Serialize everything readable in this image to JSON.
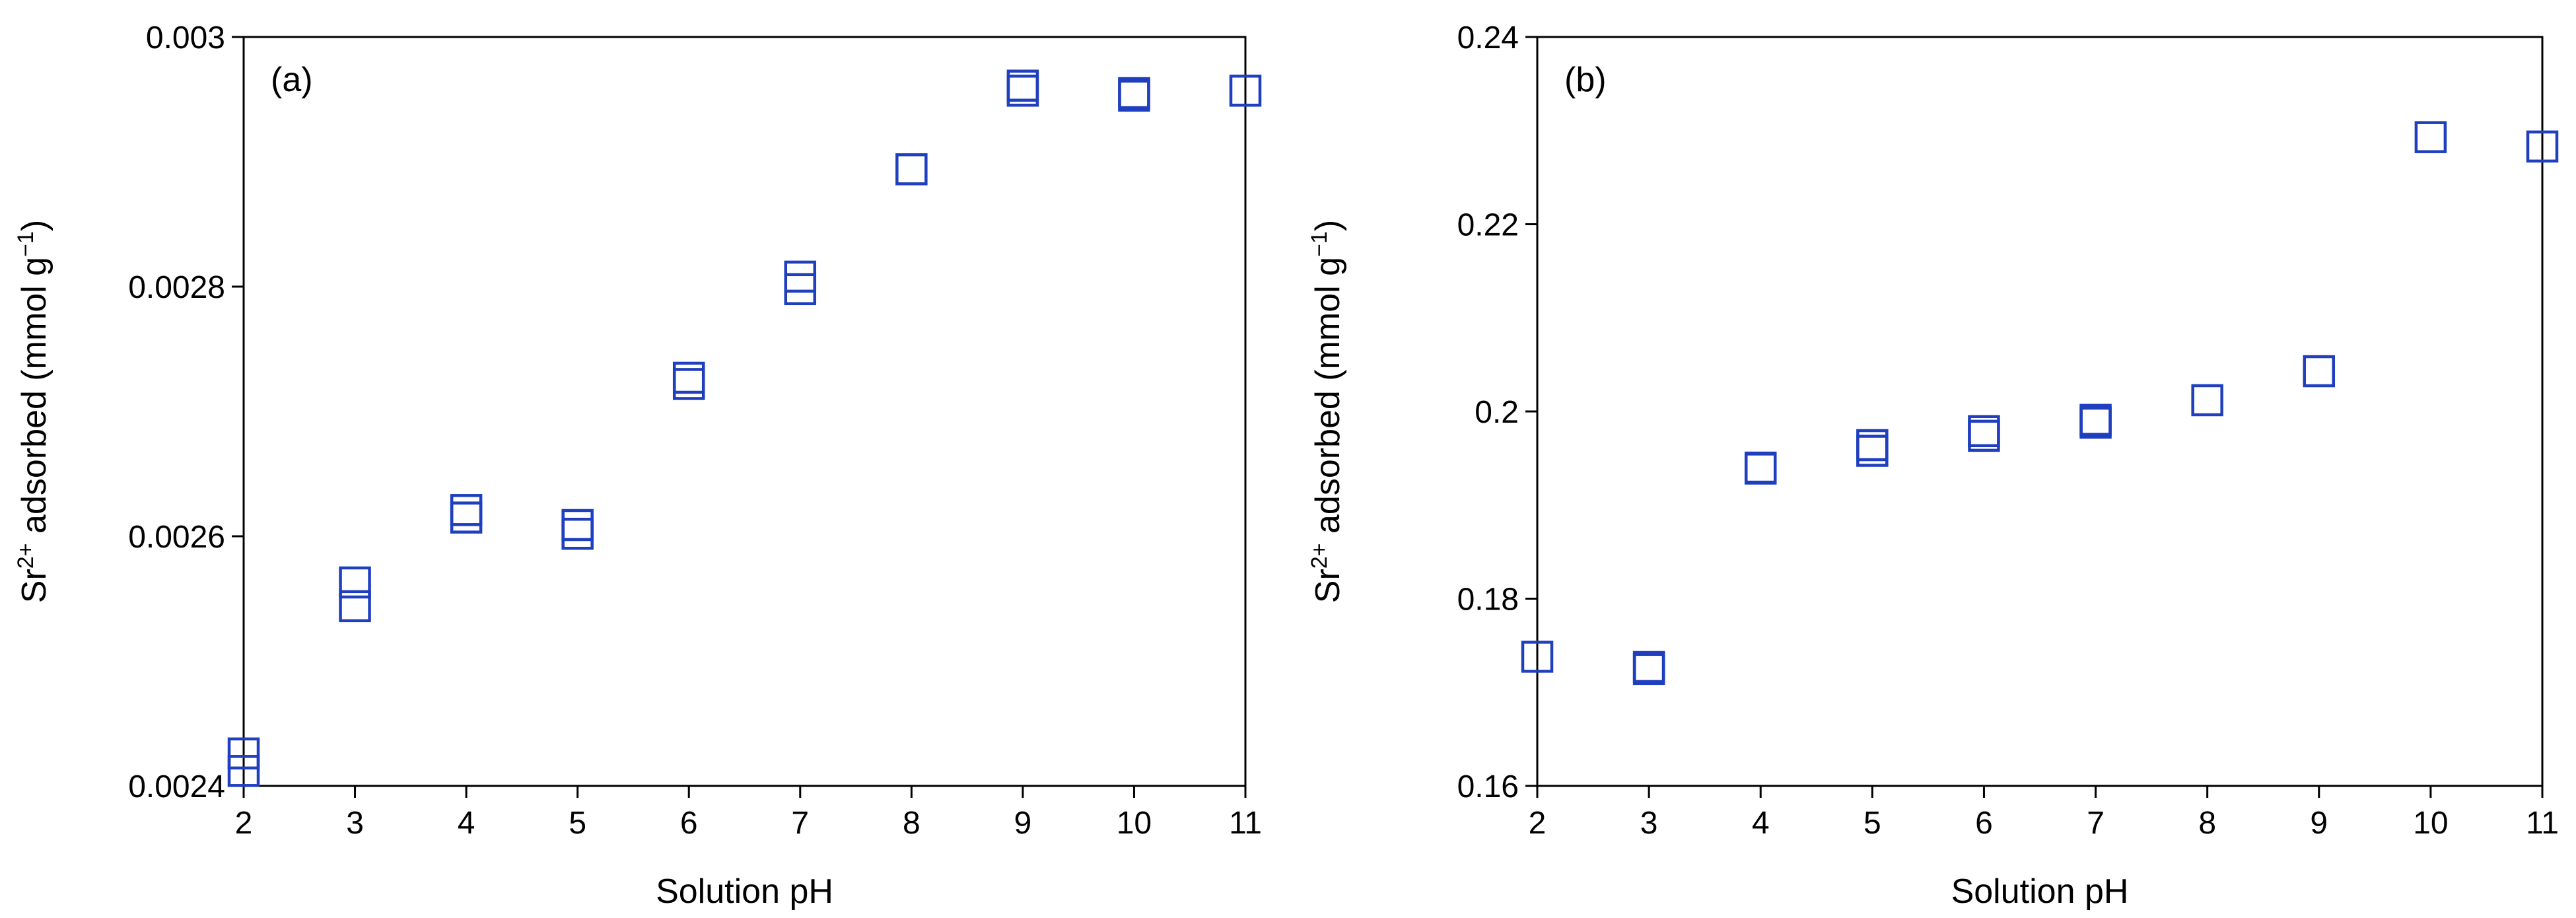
{
  "chart_data": [
    {
      "type": "scatter",
      "panel_label": "(a)",
      "xlabel": "Solution pH",
      "ylabel_parts": [
        "Sr",
        "2+",
        " adsorbed (mmol g",
        "−1",
        ")"
      ],
      "xlim": [
        2,
        11
      ],
      "ylim": [
        0.0024,
        0.003
      ],
      "xticks": [
        2,
        3,
        4,
        5,
        6,
        7,
        8,
        9,
        10,
        11
      ],
      "yticks": [
        0.0024,
        0.0026,
        0.0028,
        0.003
      ],
      "ytick_labels": [
        "0.0024",
        "0.0026",
        "0.0028",
        "0.003"
      ],
      "marker": "open-square",
      "color": "#1f3fbf",
      "points": [
        {
          "x": 2,
          "y": 0.002426
        },
        {
          "x": 2,
          "y": 0.002412
        },
        {
          "x": 3,
          "y": 0.002563
        },
        {
          "x": 3,
          "y": 0.002544
        },
        {
          "x": 4,
          "y": 0.002621
        },
        {
          "x": 4,
          "y": 0.002615
        },
        {
          "x": 5,
          "y": 0.002609
        },
        {
          "x": 5,
          "y": 0.002602
        },
        {
          "x": 6,
          "y": 0.002727
        },
        {
          "x": 6,
          "y": 0.002722
        },
        {
          "x": 7,
          "y": 0.002808
        },
        {
          "x": 7,
          "y": 0.002798
        },
        {
          "x": 8,
          "y": 0.002894
        },
        {
          "x": 9,
          "y": 0.002961
        },
        {
          "x": 9,
          "y": 0.002957
        },
        {
          "x": 10,
          "y": 0.002955
        },
        {
          "x": 10,
          "y": 0.002953
        },
        {
          "x": 11,
          "y": 0.002957
        }
      ]
    },
    {
      "type": "scatter",
      "panel_label": "(b)",
      "xlabel": "Solution pH",
      "ylabel_parts": [
        "Sr",
        "2+",
        " adsorbed (mmol g",
        "−1",
        ")"
      ],
      "xlim": [
        2,
        11
      ],
      "ylim": [
        0.16,
        0.24
      ],
      "xticks": [
        2,
        3,
        4,
        5,
        6,
        7,
        8,
        9,
        10,
        11
      ],
      "yticks": [
        0.16,
        0.18,
        0.2,
        0.22,
        0.24
      ],
      "ytick_labels": [
        "0.16",
        "0.18",
        "0.2",
        "0.22",
        "0.24"
      ],
      "marker": "open-square",
      "color": "#1f3fbf",
      "points": [
        {
          "x": 2,
          "y": 0.1738
        },
        {
          "x": 3,
          "y": 0.1727
        },
        {
          "x": 3,
          "y": 0.1725
        },
        {
          "x": 4,
          "y": 0.194
        },
        {
          "x": 4,
          "y": 0.1939
        },
        {
          "x": 5,
          "y": 0.1964
        },
        {
          "x": 5,
          "y": 0.1958
        },
        {
          "x": 6,
          "y": 0.1979
        },
        {
          "x": 6,
          "y": 0.1974
        },
        {
          "x": 7,
          "y": 0.1991
        },
        {
          "x": 7,
          "y": 0.1988
        },
        {
          "x": 8,
          "y": 0.2012
        },
        {
          "x": 9,
          "y": 0.2043
        },
        {
          "x": 10,
          "y": 0.2293
        },
        {
          "x": 11,
          "y": 0.2283
        }
      ]
    }
  ]
}
